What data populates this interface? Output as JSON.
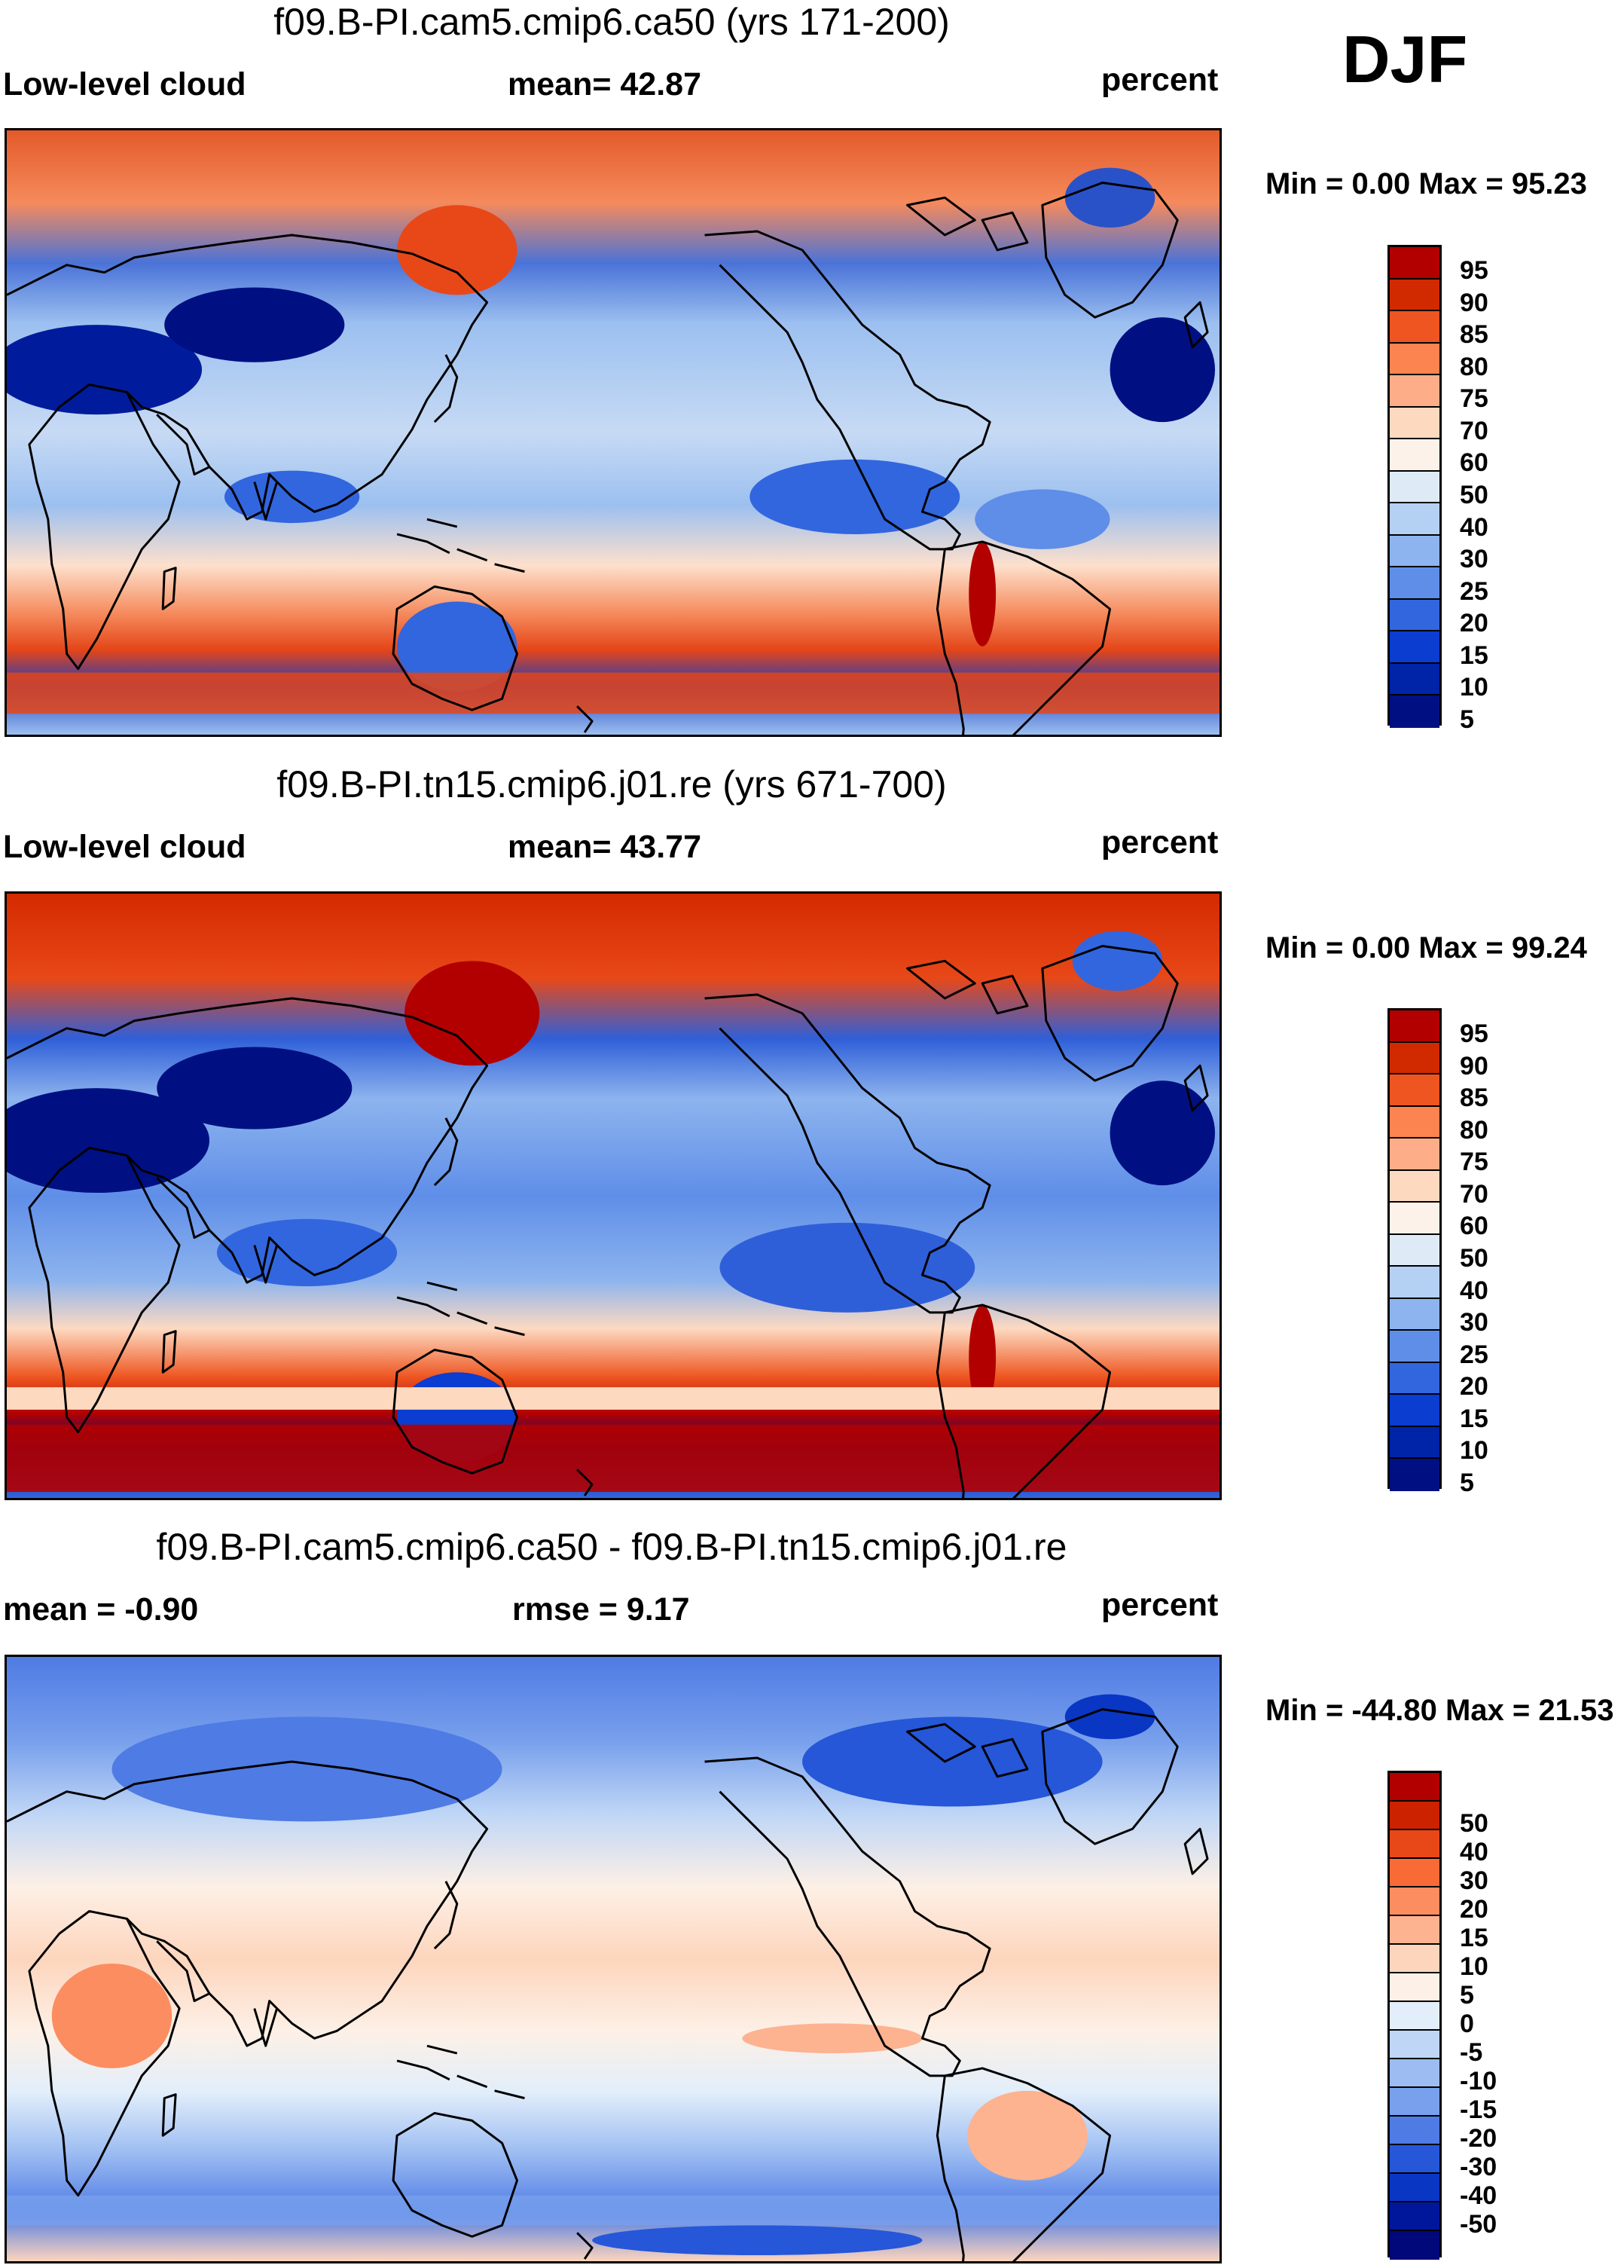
{
  "figure": {
    "season": "DJF",
    "panels": [
      {
        "id": "case1",
        "title": "f09.B-PI.cam5.cmip6.ca50 (yrs 171-200)",
        "left_label": "Low-level cloud",
        "center_label": "mean=  42.87",
        "right_label": "percent",
        "minmax": "Min =   0.00 Max =  95.23",
        "colorbar": {
          "colors": [
            "#b20000",
            "#d22a00",
            "#ee5520",
            "#fb8450",
            "#fdae88",
            "#fdd9c0",
            "#fdf2ea",
            "#deebf7",
            "#b4d0f2",
            "#8db4ee",
            "#5f8ee8",
            "#3266de",
            "#0a3dd0",
            "#0024a8",
            "#001083"
          ],
          "ticks": [
            "95",
            "90",
            "85",
            "80",
            "75",
            "70",
            "60",
            "50",
            "40",
            "30",
            "25",
            "20",
            "15",
            "10",
            "5"
          ]
        }
      },
      {
        "id": "case2",
        "title": "f09.B-PI.tn15.cmip6.j01.re (yrs 671-700)",
        "left_label": "Low-level cloud",
        "center_label": "mean=  43.77",
        "right_label": "percent",
        "minmax": "Min =   0.00 Max =  99.24",
        "colorbar": {
          "colors": [
            "#b20000",
            "#d22a00",
            "#ee5520",
            "#fb8450",
            "#fdae88",
            "#fdd9c0",
            "#fdf2ea",
            "#deebf7",
            "#b4d0f2",
            "#8db4ee",
            "#5f8ee8",
            "#3266de",
            "#0a3dd0",
            "#0024a8",
            "#001083"
          ],
          "ticks": [
            "95",
            "90",
            "85",
            "80",
            "75",
            "70",
            "60",
            "50",
            "40",
            "30",
            "25",
            "20",
            "15",
            "10",
            "5"
          ]
        }
      },
      {
        "id": "diff",
        "title": "f09.B-PI.cam5.cmip6.ca50 - f09.B-PI.tn15.cmip6.j01.re",
        "left_label": "mean =  -0.90",
        "center_label": "rmse =   9.17",
        "right_label": "percent",
        "minmax": "Min = -44.80 Max =  21.53",
        "colorbar": {
          "colors": [
            "#b20000",
            "#cc2200",
            "#e84818",
            "#f86a36",
            "#fb8d60",
            "#fdb290",
            "#fdd5bd",
            "#fdf0e6",
            "#e2eefa",
            "#bfd6f6",
            "#9dbdf2",
            "#78a0ec",
            "#4f7be4",
            "#2557d8",
            "#0a36c4",
            "#00179c",
            "#00087a"
          ],
          "ticks": [
            "50",
            "40",
            "30",
            "20",
            "15",
            "10",
            "5",
            "0",
            "-5",
            "-10",
            "-15",
            "-20",
            "-30",
            "-40",
            "-50"
          ]
        }
      }
    ]
  },
  "colors": {
    "land_outline": "#000000",
    "background": "#ffffff"
  }
}
